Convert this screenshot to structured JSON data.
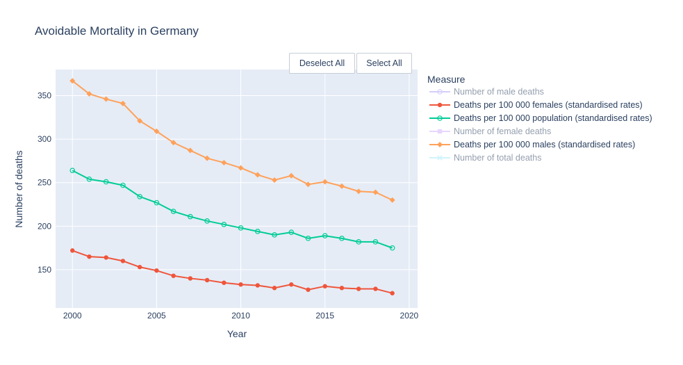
{
  "controls": {
    "deselect_all": "Deselect All",
    "select_all": "Select All"
  },
  "chart_data": {
    "type": "line",
    "title": "Avoidable Mortality in Germany",
    "xlabel": "Year",
    "ylabel": "Number of deaths",
    "xlim": [
      1999,
      2020.5
    ],
    "ylim": [
      106,
      380
    ],
    "x_ticks": [
      2000,
      2005,
      2010,
      2015,
      2020
    ],
    "y_ticks": [
      150,
      200,
      250,
      300,
      350
    ],
    "grid": true,
    "legend": {
      "title": "Measure",
      "position": "right",
      "entries": [
        {
          "name": "Number of male deaths",
          "color": "#ab9ff7",
          "marker": "circle-open",
          "visible": false
        },
        {
          "name": "Deaths per 100 000 females (standardised rates)",
          "color": "#ef553b",
          "marker": "circle",
          "visible": true
        },
        {
          "name": "Deaths per 100 000 population (standardised rates)",
          "color": "#00cc96",
          "marker": "circle-open",
          "visible": true
        },
        {
          "name": "Number of female deaths",
          "color": "#d1aefc",
          "marker": "square",
          "visible": false
        },
        {
          "name": "Deaths per 100 000 males (standardised rates)",
          "color": "#ffa15a",
          "marker": "diamond",
          "visible": true
        },
        {
          "name": "Number of total deaths",
          "color": "#a3e8fb",
          "marker": "x",
          "visible": false
        }
      ]
    },
    "x": [
      2000,
      2001,
      2002,
      2003,
      2004,
      2005,
      2006,
      2007,
      2008,
      2009,
      2010,
      2011,
      2012,
      2013,
      2014,
      2015,
      2016,
      2017,
      2018,
      2019
    ],
    "series": [
      {
        "name": "Deaths per 100 000 females (standardised rates)",
        "color": "#ef553b",
        "marker": "circle",
        "values": [
          172,
          165,
          164,
          160,
          153,
          149,
          143,
          140,
          138,
          135,
          133,
          132,
          129,
          133,
          127,
          131,
          129,
          128,
          128,
          123
        ]
      },
      {
        "name": "Deaths per 100 000 population (standardised rates)",
        "color": "#00cc96",
        "marker": "circle-open",
        "values": [
          264,
          254,
          251,
          247,
          234,
          227,
          217,
          211,
          206,
          202,
          198,
          194,
          190,
          193,
          186,
          189,
          186,
          182,
          182,
          175
        ]
      },
      {
        "name": "Deaths per 100 000 males (standardised rates)",
        "color": "#ffa15a",
        "marker": "diamond",
        "values": [
          367,
          352,
          346,
          341,
          321,
          309,
          296,
          287,
          278,
          273,
          267,
          259,
          253,
          258,
          248,
          251,
          246,
          240,
          239,
          230
        ]
      }
    ]
  }
}
